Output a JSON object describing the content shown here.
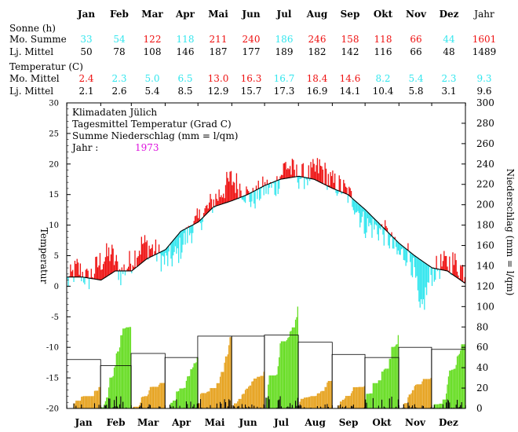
{
  "colors": {
    "warm": "#ee1111",
    "cold": "#33e6ee",
    "dry_precip": "#e6a21e",
    "wet_precip": "#66dd22",
    "magenta": "#dd11dd",
    "black": "#000000"
  },
  "table": {
    "months": [
      "Jan",
      "Feb",
      "Mar",
      "Apr",
      "Mai",
      "Jun",
      "Jul",
      "Aug",
      "Sep",
      "Okt",
      "Nov",
      "Dez"
    ],
    "year_label": "Jahr",
    "sun_header": "Sonne (h)",
    "sun_month_label": "Mo. Summe",
    "sun_lt_label": "Lj. Mittel",
    "sun_month": [
      "33",
      "54",
      "122",
      "118",
      "211",
      "240",
      "186",
      "246",
      "158",
      "118",
      "66",
      "44",
      "1601"
    ],
    "sun_month_colors": [
      "cold",
      "cold",
      "warm",
      "cold",
      "warm",
      "warm",
      "cold",
      "warm",
      "warm",
      "warm",
      "warm",
      "cold",
      "warm"
    ],
    "sun_lt": [
      "50",
      "78",
      "108",
      "146",
      "187",
      "177",
      "189",
      "182",
      "142",
      "116",
      "66",
      "48",
      "1489"
    ],
    "temp_header": "Temperatur (C)",
    "temp_month_label": "Mo. Mittel",
    "temp_lt_label": "Lj. Mittel",
    "temp_month": [
      "2.4",
      "2.3",
      "5.0",
      "6.5",
      "13.0",
      "16.3",
      "16.7",
      "18.4",
      "14.6",
      "8.2",
      "5.4",
      "2.3",
      "9.3"
    ],
    "temp_month_colors": [
      "warm",
      "cold",
      "cold",
      "cold",
      "warm",
      "warm",
      "cold",
      "warm",
      "warm",
      "cold",
      "cold",
      "cold",
      "cold"
    ],
    "temp_lt": [
      "2.1",
      "2.6",
      "5.4",
      "8.5",
      "12.9",
      "15.7",
      "17.3",
      "16.9",
      "14.1",
      "10.4",
      "5.8",
      "3.1",
      "9.6"
    ]
  },
  "info": {
    "line1": "Klimadaten Jülich",
    "line2": "Tagesmittel Temperatur (Grad C)",
    "line3": "Summe Niederschlag (mm = l/qm)",
    "year_label": "Jahr :",
    "year_value": "1973"
  },
  "chart_data": {
    "type": "bar",
    "ylabel_left": "Temperatur",
    "ylabel_right": "Niederschlag (mm = l/qm)",
    "ylim_left": [
      -20,
      30
    ],
    "ylim_right": [
      0,
      300
    ],
    "left_ticks": [
      30,
      25,
      20,
      15,
      10,
      5,
      0,
      -5,
      -10,
      -15,
      -20
    ],
    "right_ticks": [
      300,
      280,
      260,
      240,
      220,
      200,
      180,
      160,
      140,
      120,
      100,
      80,
      60,
      40,
      20,
      0
    ],
    "x_months": [
      "Jan",
      "Feb",
      "Mar",
      "Apr",
      "Mai",
      "Jun",
      "Jul",
      "Aug",
      "Sep",
      "Okt",
      "Nov",
      "Dez"
    ],
    "longterm_temp_curve": {
      "day": [
        1,
        15,
        32,
        45,
        60,
        74,
        91,
        105,
        121,
        135,
        152,
        166,
        182,
        196,
        213,
        227,
        244,
        258,
        274,
        288,
        305,
        319,
        335,
        349,
        365
      ],
      "temp": [
        1.5,
        1.5,
        1.0,
        2.5,
        2.5,
        4.5,
        6.0,
        9.0,
        10.5,
        13.0,
        14.0,
        15.0,
        16.5,
        17.5,
        18.0,
        17.5,
        16.0,
        15.0,
        12.5,
        10.0,
        7.0,
        5.0,
        3.0,
        2.5,
        0.5
      ]
    },
    "daily_temp_anchor": {
      "day": [
        1,
        10,
        20,
        31,
        41,
        50,
        59,
        70,
        80,
        90,
        101,
        110,
        120,
        131,
        140,
        151,
        161,
        170,
        181,
        191,
        201,
        212,
        222,
        232,
        243,
        253,
        263,
        273,
        283,
        293,
        304,
        314,
        320,
        324,
        334,
        344,
        354,
        365
      ],
      "temp": [
        0.5,
        3.0,
        1.0,
        4.0,
        5.5,
        2.0,
        4.0,
        7.0,
        6.0,
        4.0,
        5.0,
        8.0,
        10.5,
        13.0,
        15.0,
        17.5,
        16.0,
        14.0,
        16.0,
        16.0,
        20.0,
        18.0,
        18.0,
        19.5,
        17.0,
        16.0,
        14.0,
        10.0,
        9.5,
        8.5,
        5.0,
        5.5,
        1.0,
        -5.0,
        2.0,
        3.5,
        4.0,
        2.5
      ]
    },
    "monthly_precip_box_mm": [
      48,
      42,
      54,
      50,
      71,
      71,
      72,
      65,
      53,
      50,
      60,
      58
    ],
    "cumulative_precip_mm": [
      21,
      80,
      25,
      50,
      70,
      36,
      100,
      27,
      22,
      72,
      30,
      63
    ],
    "daily_precip_max_mm": 12
  }
}
